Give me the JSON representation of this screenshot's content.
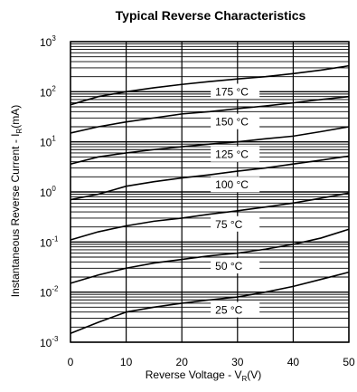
{
  "chart_data": {
    "type": "line",
    "title": "Typical Reverse Characteristics",
    "xlabel": "Reverse Voltage - V",
    "xlabel_sub": "R",
    "xlabel_unit": "(V)",
    "ylabel": "Instantaneous Reverse Current - I",
    "ylabel_sub": "R",
    "ylabel_unit": "(mA)",
    "x_scale": "linear",
    "y_scale": "log",
    "xlim": [
      0,
      50
    ],
    "ylim": [
      0.001,
      1000
    ],
    "x_ticks": [
      0,
      10,
      20,
      30,
      40,
      50
    ],
    "x_tick_labels": [
      "0",
      "10",
      "20",
      "30",
      "40",
      "50"
    ],
    "y_ticks": [
      0.001,
      0.01,
      0.1,
      1,
      10,
      100,
      1000
    ],
    "y_tick_base": "10",
    "y_tick_exponents": [
      "-3",
      "-2",
      "-1",
      "0",
      "1",
      "2",
      "3"
    ],
    "grid": true,
    "x": [
      0,
      5,
      10,
      15,
      20,
      25,
      30,
      35,
      40,
      45,
      50
    ],
    "series": [
      {
        "name": "175 °C",
        "values": [
          55,
          80,
          100,
          120,
          140,
          160,
          180,
          200,
          230,
          270,
          330
        ]
      },
      {
        "name": "150 °C",
        "values": [
          15,
          20,
          25,
          30,
          36,
          40,
          46,
          52,
          60,
          70,
          80
        ]
      },
      {
        "name": "125 °C",
        "values": [
          3.6,
          5,
          6,
          7,
          8,
          9,
          10,
          11.5,
          13,
          16,
          20
        ]
      },
      {
        "name": "100 °C",
        "values": [
          0.7,
          0.9,
          1.3,
          1.6,
          1.9,
          2.2,
          2.6,
          3,
          3.6,
          4.3,
          5.2
        ]
      },
      {
        "name": "75 °C",
        "values": [
          0.11,
          0.16,
          0.21,
          0.26,
          0.3,
          0.36,
          0.42,
          0.5,
          0.6,
          0.75,
          0.95
        ]
      },
      {
        "name": "50 °C",
        "values": [
          0.015,
          0.022,
          0.03,
          0.038,
          0.045,
          0.053,
          0.06,
          0.072,
          0.09,
          0.12,
          0.18
        ]
      },
      {
        "name": "25 °C",
        "values": [
          0.0015,
          0.0025,
          0.004,
          0.005,
          0.006,
          0.007,
          0.008,
          0.01,
          0.013,
          0.018,
          0.025
        ]
      }
    ],
    "curve_labels_at_x": 26
  }
}
